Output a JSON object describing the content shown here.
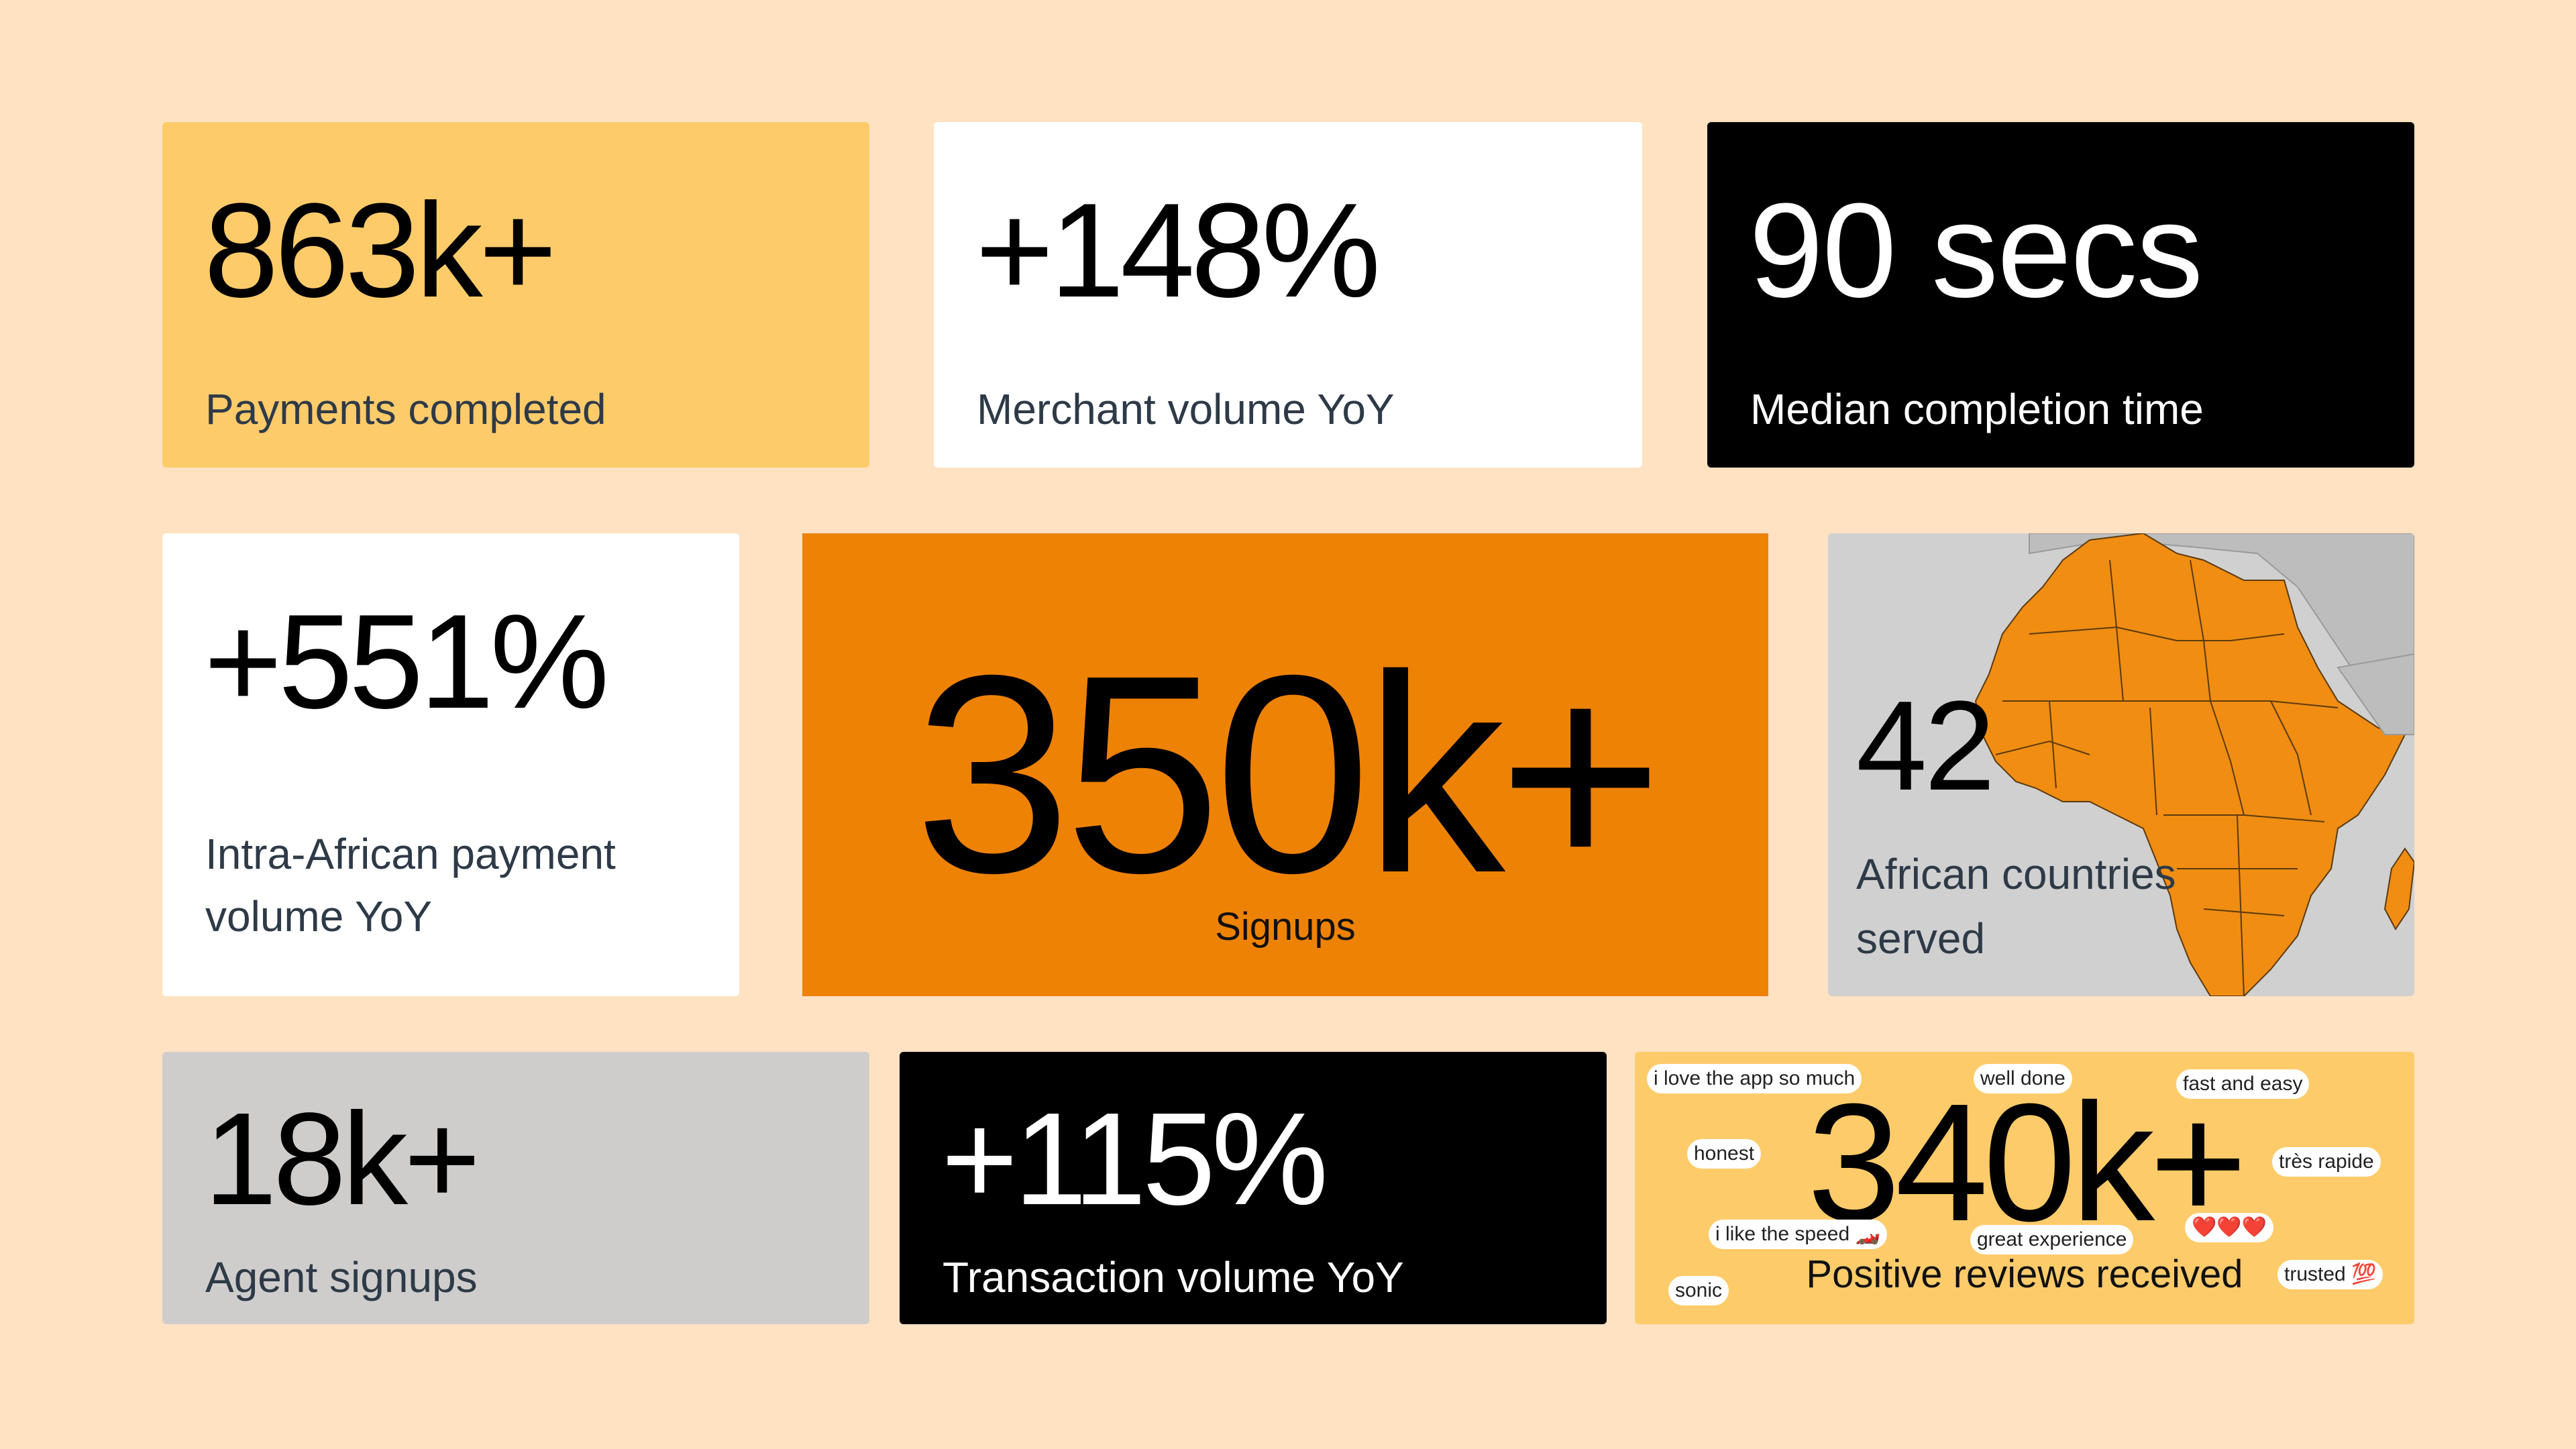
{
  "cards": {
    "payments": {
      "value": "863k+",
      "label": "Payments completed",
      "color": "#FECB6A"
    },
    "merchant": {
      "value": "+148%",
      "label": "Merchant volume YoY",
      "color": "#FFFFFF"
    },
    "median": {
      "value": "90 secs",
      "label": "Median completion time",
      "color": "#000000"
    },
    "intra": {
      "value": "+551%",
      "label_line1": "Intra-African payment",
      "label_line2": "volume YoY",
      "color": "#FFFFFF"
    },
    "signups": {
      "value": "350k+",
      "label": "Signups",
      "color": "#EE8204"
    },
    "countries": {
      "value": "42",
      "label": "African countries served",
      "color": "#D0D0D0",
      "map_icon": "africa-map-icon",
      "map_fill": "#F08D12"
    },
    "agents": {
      "value": "18k+",
      "label": "Agent signups",
      "color": "#CFCDCC"
    },
    "transaction": {
      "value": "+115%",
      "label": "Transaction volume YoY",
      "color": "#000000"
    },
    "reviews": {
      "value": "340k+",
      "label": "Positive reviews received",
      "color": "#FECB6A",
      "tags": [
        "i love the app so much",
        "well done",
        "fast and easy",
        "honest",
        "très rapide",
        "i like the speed 🏎️",
        "great experience",
        "❤️❤️❤️",
        "sonic",
        "trusted 💯"
      ]
    }
  }
}
